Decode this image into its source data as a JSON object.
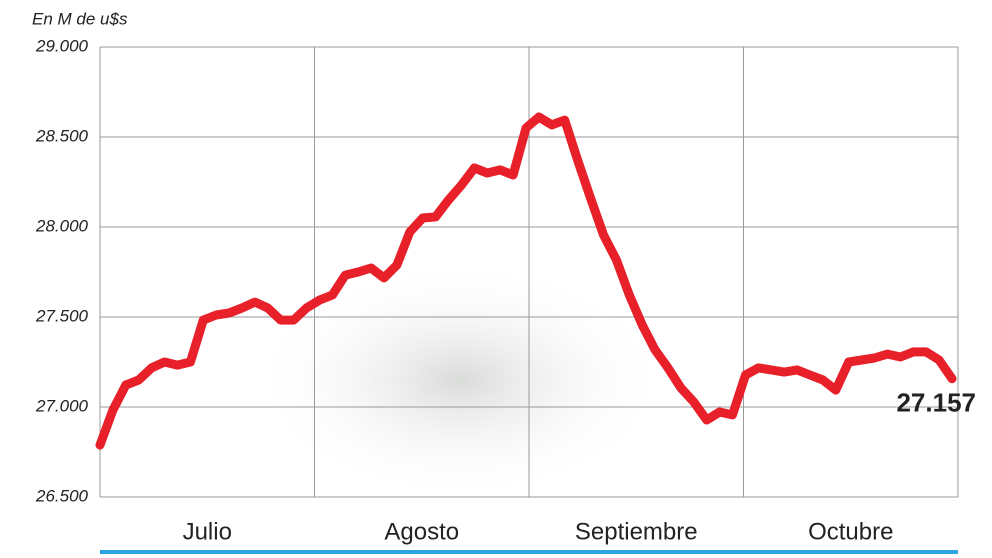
{
  "chart_data": {
    "type": "line",
    "ylabel": "En M de u$s",
    "months": [
      "Julio",
      "Agosto",
      "Septiembre",
      "Octubre"
    ],
    "ylim": [
      26500,
      29000
    ],
    "yticks": [
      {
        "value": 26500,
        "label": "26.500"
      },
      {
        "value": 27000,
        "label": "27.000"
      },
      {
        "value": 27500,
        "label": "27.500"
      },
      {
        "value": 28000,
        "label": "28.000"
      },
      {
        "value": 28500,
        "label": "28.500"
      },
      {
        "value": 29000,
        "label": "29.000"
      }
    ],
    "grid": true,
    "color": "#e8202a",
    "values": [
      26789,
      26983,
      27122,
      27150,
      27217,
      27250,
      27233,
      27250,
      27483,
      27511,
      27522,
      27550,
      27583,
      27550,
      27483,
      27483,
      27550,
      27594,
      27622,
      27733,
      27750,
      27772,
      27717,
      27789,
      27972,
      28050,
      28056,
      28150,
      28233,
      28328,
      28300,
      28317,
      28289,
      28550,
      28611,
      28567,
      28594,
      28372,
      28161,
      27956,
      27817,
      27622,
      27456,
      27317,
      27217,
      27106,
      27028,
      26928,
      26972,
      26956,
      27178,
      27217,
      27206,
      27194,
      27206,
      27178,
      27150,
      27094,
      27250,
      27261,
      27272,
      27294,
      27278,
      27306,
      27306,
      27261,
      27157
    ],
    "value_labels": [
      null,
      null,
      null,
      null,
      null,
      null,
      null,
      null,
      null,
      null,
      null,
      null,
      null,
      null,
      null,
      null,
      null,
      null,
      null,
      null,
      null,
      null,
      null,
      null,
      null,
      null,
      null,
      null,
      null,
      null,
      null,
      null,
      null,
      null,
      null,
      null,
      null,
      null,
      null,
      null,
      null,
      null,
      null,
      null,
      null,
      null,
      null,
      null,
      null,
      null,
      null,
      null,
      null,
      null,
      null,
      null,
      null,
      null,
      null,
      null,
      null,
      null,
      null,
      null,
      null,
      null,
      "27.157"
    ]
  }
}
